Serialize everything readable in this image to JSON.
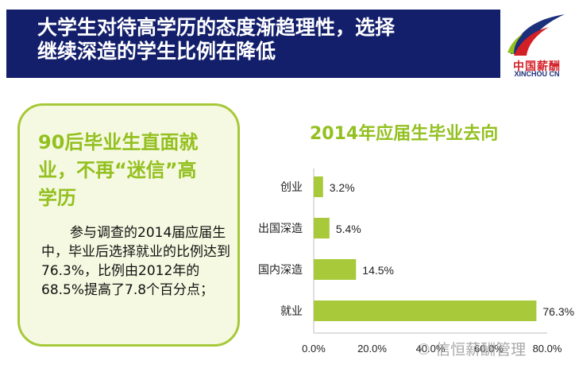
{
  "header": {
    "title_line1": "大学生对待高学历的态度渐趋理性，选择",
    "title_line2": "继续深造的学生比例在降低"
  },
  "logo": {
    "icon": "swoosh-logo-icon",
    "text_cn": "中国薪酬",
    "text_en": "XINCHOU CN",
    "colors": [
      "#d32027",
      "#1c2f7a",
      "#93c01f"
    ]
  },
  "card": {
    "heading_line1": "90后毕业生直面就",
    "heading_line2": "业，不再“迷信”高",
    "heading_line3": "学历",
    "body": "参与调查的2014届应届生中，毕业后选择就业的比例达到76.3%，比例由2012年的68.5%提高了7.8个百分点；"
  },
  "chart_data": {
    "type": "bar",
    "orientation": "horizontal",
    "title": "2014年应届生毕业去向",
    "categories": [
      "创业",
      "出国深造",
      "国内深造",
      "就业"
    ],
    "values": [
      3.2,
      5.4,
      14.5,
      76.3
    ],
    "value_labels": [
      "3.2%",
      "5.4%",
      "14.5%",
      "76.3%"
    ],
    "x_ticks": [
      "0.0%",
      "20.0%",
      "40.0%",
      "60.0%",
      "80.0%"
    ],
    "xlim": [
      0,
      80
    ],
    "bar_color": "#a8c93a",
    "grid": false
  },
  "watermark": {
    "icon": "wechat-icon",
    "text": "信恒薪酬管理"
  }
}
